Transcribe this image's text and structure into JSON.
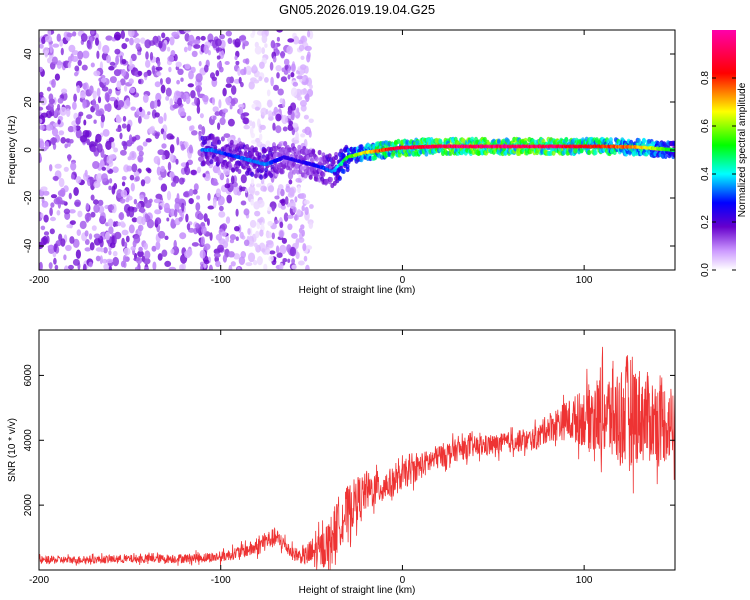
{
  "figure_title": "GN05.2026.019.19.04.G25",
  "chart_data": [
    {
      "type": "heatmap",
      "title": "GN05.2026.019.19.04.G25",
      "xlabel": "Height of straight line (km)",
      "ylabel": "Frequency (Hz)",
      "xlim": [
        -200,
        150
      ],
      "ylim": [
        -50,
        50
      ],
      "xticks": [
        -200,
        -100,
        0,
        100
      ],
      "xtick_labels": [
        "-200",
        "-100",
        "0",
        "100"
      ],
      "yticks": [
        -40,
        -20,
        0,
        20,
        40
      ],
      "ytick_labels": [
        "-40",
        "-20",
        "0",
        "20",
        "40"
      ],
      "colorbar": {
        "label": "Normalized spectral amplitude",
        "range": [
          0,
          1
        ],
        "ticks": [
          0.0,
          0.2,
          0.4,
          0.6,
          0.8
        ],
        "tick_labels": [
          "0.0",
          "0.2",
          "0.4",
          "0.6",
          "0.8"
        ],
        "colormap": [
          "#ffffff",
          "#6600cc",
          "#0000ff",
          "#00ffff",
          "#00ff00",
          "#ffff00",
          "#ff0000",
          "#ff00aa"
        ]
      },
      "ridge": {
        "description": "dominant frequency track",
        "x": [
          -105,
          -95,
          -85,
          -75,
          -65,
          -55,
          -45,
          -38,
          -30,
          -20,
          -10,
          0,
          20,
          50,
          80,
          110,
          130,
          150
        ],
        "y": [
          0,
          -2,
          -4,
          -6,
          -3,
          -5,
          -7,
          -9,
          -3,
          -1,
          0,
          1,
          1.5,
          1.5,
          1.5,
          1.5,
          1.2,
          0
        ],
        "amplitude": [
          0.35,
          0.3,
          0.35,
          0.35,
          0.25,
          0.25,
          0.3,
          0.35,
          0.55,
          0.7,
          0.85,
          0.9,
          0.95,
          0.97,
          0.95,
          0.85,
          0.75,
          0.5
        ]
      },
      "noise_region": {
        "x_range": [
          -200,
          -50
        ],
        "y_range": [
          -50,
          50
        ],
        "amplitude": 0.15
      }
    },
    {
      "type": "line",
      "xlabel": "Height of straight line (km)",
      "ylabel": "SNR (10 * v/v)",
      "xlim": [
        -200,
        150
      ],
      "ylim": [
        0,
        7400
      ],
      "xticks": [
        -200,
        -100,
        0,
        100
      ],
      "xtick_labels": [
        "-200",
        "-100",
        "0",
        "100"
      ],
      "yticks": [
        2000,
        4000,
        6000
      ],
      "ytick_labels": [
        "2000",
        "4000",
        "6000"
      ],
      "color": "#ee3333",
      "series": [
        {
          "name": "SNR",
          "x": [
            -200,
            -175,
            -150,
            -125,
            -100,
            -90,
            -80,
            -75,
            -70,
            -65,
            -60,
            -55,
            -50,
            -45,
            -40,
            -35,
            -30,
            -25,
            -20,
            -15,
            -10,
            -5,
            0,
            10,
            20,
            30,
            40,
            50,
            60,
            70,
            75,
            80,
            90,
            100,
            110,
            120,
            125,
            130,
            140,
            150
          ],
          "y": [
            300,
            320,
            340,
            350,
            400,
            550,
            700,
            900,
            1000,
            800,
            500,
            400,
            500,
            600,
            900,
            1500,
            1800,
            2200,
            2400,
            2500,
            2600,
            2700,
            2900,
            3200,
            3500,
            3700,
            3800,
            3850,
            3950,
            4000,
            4100,
            4400,
            4600,
            4700,
            4800,
            4700,
            5000,
            4800,
            4600,
            4500
          ],
          "spread": [
            120,
            120,
            130,
            140,
            160,
            200,
            260,
            300,
            300,
            250,
            220,
            220,
            500,
            600,
            700,
            800,
            800,
            700,
            600,
            550,
            500,
            450,
            420,
            400,
            380,
            350,
            330,
            320,
            330,
            340,
            380,
            450,
            600,
            900,
            1300,
            1600,
            1800,
            1500,
            1300,
            1200
          ]
        }
      ]
    }
  ]
}
